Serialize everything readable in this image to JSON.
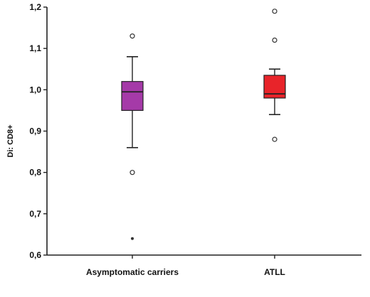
{
  "chart_data": {
    "type": "boxplot",
    "ylabel": "Di: CD8+",
    "ylim": [
      0.6,
      1.2
    ],
    "yticks": [
      0.6,
      0.7,
      0.8,
      0.9,
      1.0,
      1.1,
      1.2
    ],
    "ytick_labels": [
      "0,6",
      "0,7",
      "0,8",
      "0,9",
      "1,0",
      "1,1",
      "1,2"
    ],
    "categories": [
      "Asymptomatic carriers",
      "ATLL"
    ],
    "boxes": [
      {
        "name": "Asymptomatic carriers",
        "color": "#a53aa8",
        "whisker_low": 0.86,
        "q1": 0.95,
        "median": 0.995,
        "q3": 1.02,
        "whisker_high": 1.08,
        "outliers": [
          1.13,
          0.8
        ],
        "extremes": [
          0.64
        ]
      },
      {
        "name": "ATLL",
        "color": "#e8242a",
        "whisker_low": 0.94,
        "q1": 0.98,
        "median": 0.99,
        "q3": 1.035,
        "whisker_high": 1.05,
        "outliers": [
          1.19,
          1.12,
          0.88
        ],
        "extremes": []
      }
    ],
    "grid": false
  }
}
